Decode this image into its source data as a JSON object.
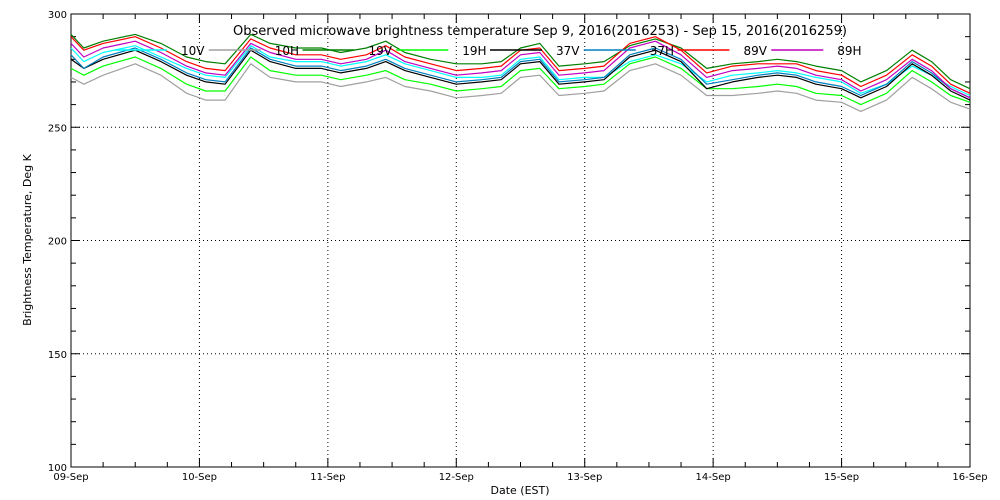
{
  "chart_data": {
    "type": "line",
    "title": "Observed microwave brightness temperature Sep  9, 2016(2016253) - Sep 15, 2016(2016259)",
    "xlabel": "Date (EST)",
    "ylabel": "Brightness Temperature, Deg K",
    "ylim": [
      100,
      300
    ],
    "yticks": [
      "100",
      "150",
      "200",
      "250",
      "300"
    ],
    "xlim": [
      0,
      7
    ],
    "xticks": [
      {
        "x": 0,
        "label": "09-Sep"
      },
      {
        "x": 1,
        "label": "10-Sep"
      },
      {
        "x": 2,
        "label": "11-Sep"
      },
      {
        "x": 3,
        "label": "12-Sep"
      },
      {
        "x": 4,
        "label": "13-Sep"
      },
      {
        "x": 5,
        "label": "14-Sep"
      },
      {
        "x": 6,
        "label": "15-Sep"
      },
      {
        "x": 7,
        "label": "16-Sep"
      }
    ],
    "grid": true,
    "legend_position": "top",
    "x_values": [
      0,
      0.1,
      0.25,
      0.5,
      0.7,
      0.9,
      1.05,
      1.2,
      1.4,
      1.55,
      1.75,
      1.95,
      2.1,
      2.3,
      2.45,
      2.6,
      2.8,
      3.0,
      3.2,
      3.35,
      3.5,
      3.65,
      3.8,
      4.0,
      4.15,
      4.35,
      4.55,
      4.75,
      4.95,
      5.15,
      5.35,
      5.5,
      5.65,
      5.8,
      6.0,
      6.15,
      6.35,
      6.55,
      6.7,
      6.85,
      7.0
    ],
    "series": [
      {
        "name": "10V",
        "color": "#00ffff",
        "values": [
          285,
          279,
          283,
          286,
          281,
          276,
          273,
          272,
          286,
          281,
          279,
          279,
          277,
          279,
          282,
          278,
          275,
          272,
          272,
          273,
          280,
          281,
          271,
          272,
          272,
          279,
          282,
          278,
          270,
          273,
          274,
          275,
          274,
          272,
          270,
          265,
          269,
          277,
          273,
          268,
          264
        ]
      },
      {
        "name": "10H",
        "color": "#a0a0a0",
        "values": [
          272,
          269,
          273,
          278,
          273,
          265,
          262,
          262,
          278,
          272,
          270,
          270,
          268,
          270,
          272,
          268,
          266,
          263,
          264,
          265,
          272,
          273,
          264,
          265,
          266,
          275,
          278,
          273,
          264,
          264,
          265,
          266,
          265,
          262,
          261,
          257,
          262,
          272,
          267,
          261,
          258
        ]
      },
      {
        "name": "19V",
        "color": "#008000",
        "values": [
          291,
          285,
          288,
          291,
          287,
          281,
          279,
          278,
          291,
          287,
          285,
          285,
          283,
          285,
          288,
          283,
          280,
          278,
          278,
          279,
          285,
          287,
          277,
          278,
          279,
          286,
          289,
          285,
          276,
          278,
          279,
          280,
          279,
          277,
          275,
          270,
          275,
          284,
          279,
          271,
          267
        ]
      },
      {
        "name": "19H",
        "color": "#00ff00",
        "values": [
          276,
          273,
          277,
          281,
          276,
          269,
          266,
          266,
          281,
          275,
          273,
          273,
          271,
          273,
          275,
          271,
          269,
          266,
          267,
          268,
          275,
          276,
          267,
          268,
          269,
          278,
          281,
          276,
          267,
          267,
          268,
          269,
          268,
          265,
          264,
          260,
          265,
          275,
          270,
          264,
          261
        ]
      },
      {
        "name": "37V",
        "color": "#000000",
        "values": [
          280,
          276,
          280,
          284,
          279,
          273,
          270,
          269,
          284,
          279,
          276,
          276,
          274,
          276,
          279,
          275,
          272,
          269,
          270,
          271,
          278,
          279,
          269,
          270,
          271,
          281,
          284,
          279,
          267,
          270,
          272,
          273,
          272,
          269,
          267,
          263,
          268,
          278,
          273,
          266,
          262
        ]
      },
      {
        "name": "37H",
        "color": "#0080c0",
        "values": [
          282,
          276,
          281,
          285,
          280,
          274,
          271,
          270,
          285,
          280,
          277,
          277,
          275,
          277,
          280,
          276,
          273,
          270,
          271,
          272,
          279,
          280,
          270,
          271,
          272,
          282,
          285,
          280,
          269,
          271,
          273,
          274,
          273,
          270,
          268,
          264,
          269,
          279,
          274,
          267,
          263
        ]
      },
      {
        "name": "89V",
        "color": "#ff0000",
        "values": [
          290,
          284,
          287,
          290,
          285,
          279,
          276,
          275,
          289,
          285,
          282,
          282,
          280,
          282,
          286,
          281,
          278,
          275,
          276,
          277,
          284,
          285,
          275,
          276,
          277,
          287,
          290,
          284,
          274,
          277,
          278,
          278,
          278,
          275,
          273,
          268,
          273,
          282,
          277,
          269,
          265
        ]
      },
      {
        "name": "89H",
        "color": "#c000c0",
        "values": [
          287,
          281,
          285,
          288,
          283,
          277,
          274,
          273,
          287,
          283,
          280,
          280,
          278,
          280,
          284,
          279,
          276,
          273,
          274,
          275,
          282,
          283,
          273,
          274,
          275,
          285,
          288,
          282,
          272,
          275,
          276,
          277,
          276,
          273,
          271,
          266,
          271,
          280,
          275,
          267,
          263
        ]
      }
    ]
  }
}
